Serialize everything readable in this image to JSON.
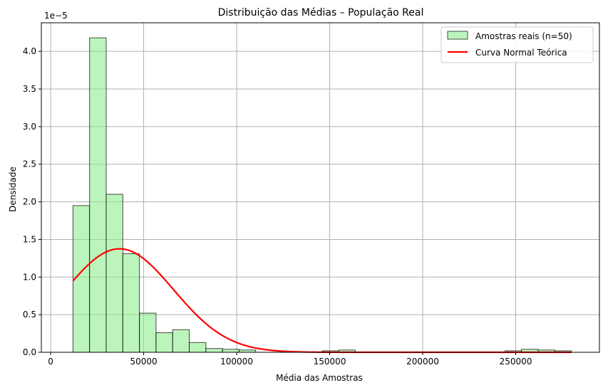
{
  "chart_data": {
    "type": "bar",
    "title": "Distribuição das Médias – População Real",
    "xlabel": "Média das Amostras",
    "ylabel": "Densidade",
    "y_offset_text": "1e−5",
    "y_scale_exponent": -5,
    "xlim": [
      -5000,
      295000
    ],
    "ylim": [
      0,
      4.38
    ],
    "x_ticks": [
      0,
      50000,
      100000,
      150000,
      200000,
      250000
    ],
    "x_tick_labels": [
      "0",
      "50000",
      "100000",
      "150000",
      "200000",
      "250000"
    ],
    "y_ticks": [
      0.0,
      0.5,
      1.0,
      1.5,
      2.0,
      2.5,
      3.0,
      3.5,
      4.0
    ],
    "y_tick_labels": [
      "0.0",
      "0.5",
      "1.0",
      "1.5",
      "2.0",
      "2.5",
      "3.0",
      "3.5",
      "4.0"
    ],
    "grid": true,
    "legend_position": "top-right",
    "bin_edges": [
      12000,
      20930,
      29860,
      38790,
      47720,
      56650,
      65580,
      74510,
      83440,
      92370,
      101300,
      110230,
      119160,
      128090,
      137020,
      145950,
      154880,
      163810,
      172740,
      181670,
      190600,
      199530,
      208460,
      217390,
      226320,
      235250,
      244180,
      253110,
      262040,
      270970,
      279900
    ],
    "series": [
      {
        "name": "Amostras reais (n=50)",
        "kind": "histogram",
        "fill": "#90ee90",
        "edge": "#000000",
        "values": [
          1.95,
          4.18,
          2.1,
          1.31,
          0.52,
          0.26,
          0.3,
          0.13,
          0.05,
          0.04,
          0.03,
          0.0,
          0.0,
          0.0,
          0.0,
          0.02,
          0.03,
          0.0,
          0.0,
          0.0,
          0.0,
          0.0,
          0.0,
          0.0,
          0.0,
          0.0,
          0.02,
          0.04,
          0.03,
          0.02
        ]
      },
      {
        "name": "Curva Normal Teórica",
        "kind": "line",
        "color": "#ff0000",
        "mean": 37000,
        "std": 29000,
        "x_range": [
          12000,
          280000
        ]
      }
    ]
  }
}
